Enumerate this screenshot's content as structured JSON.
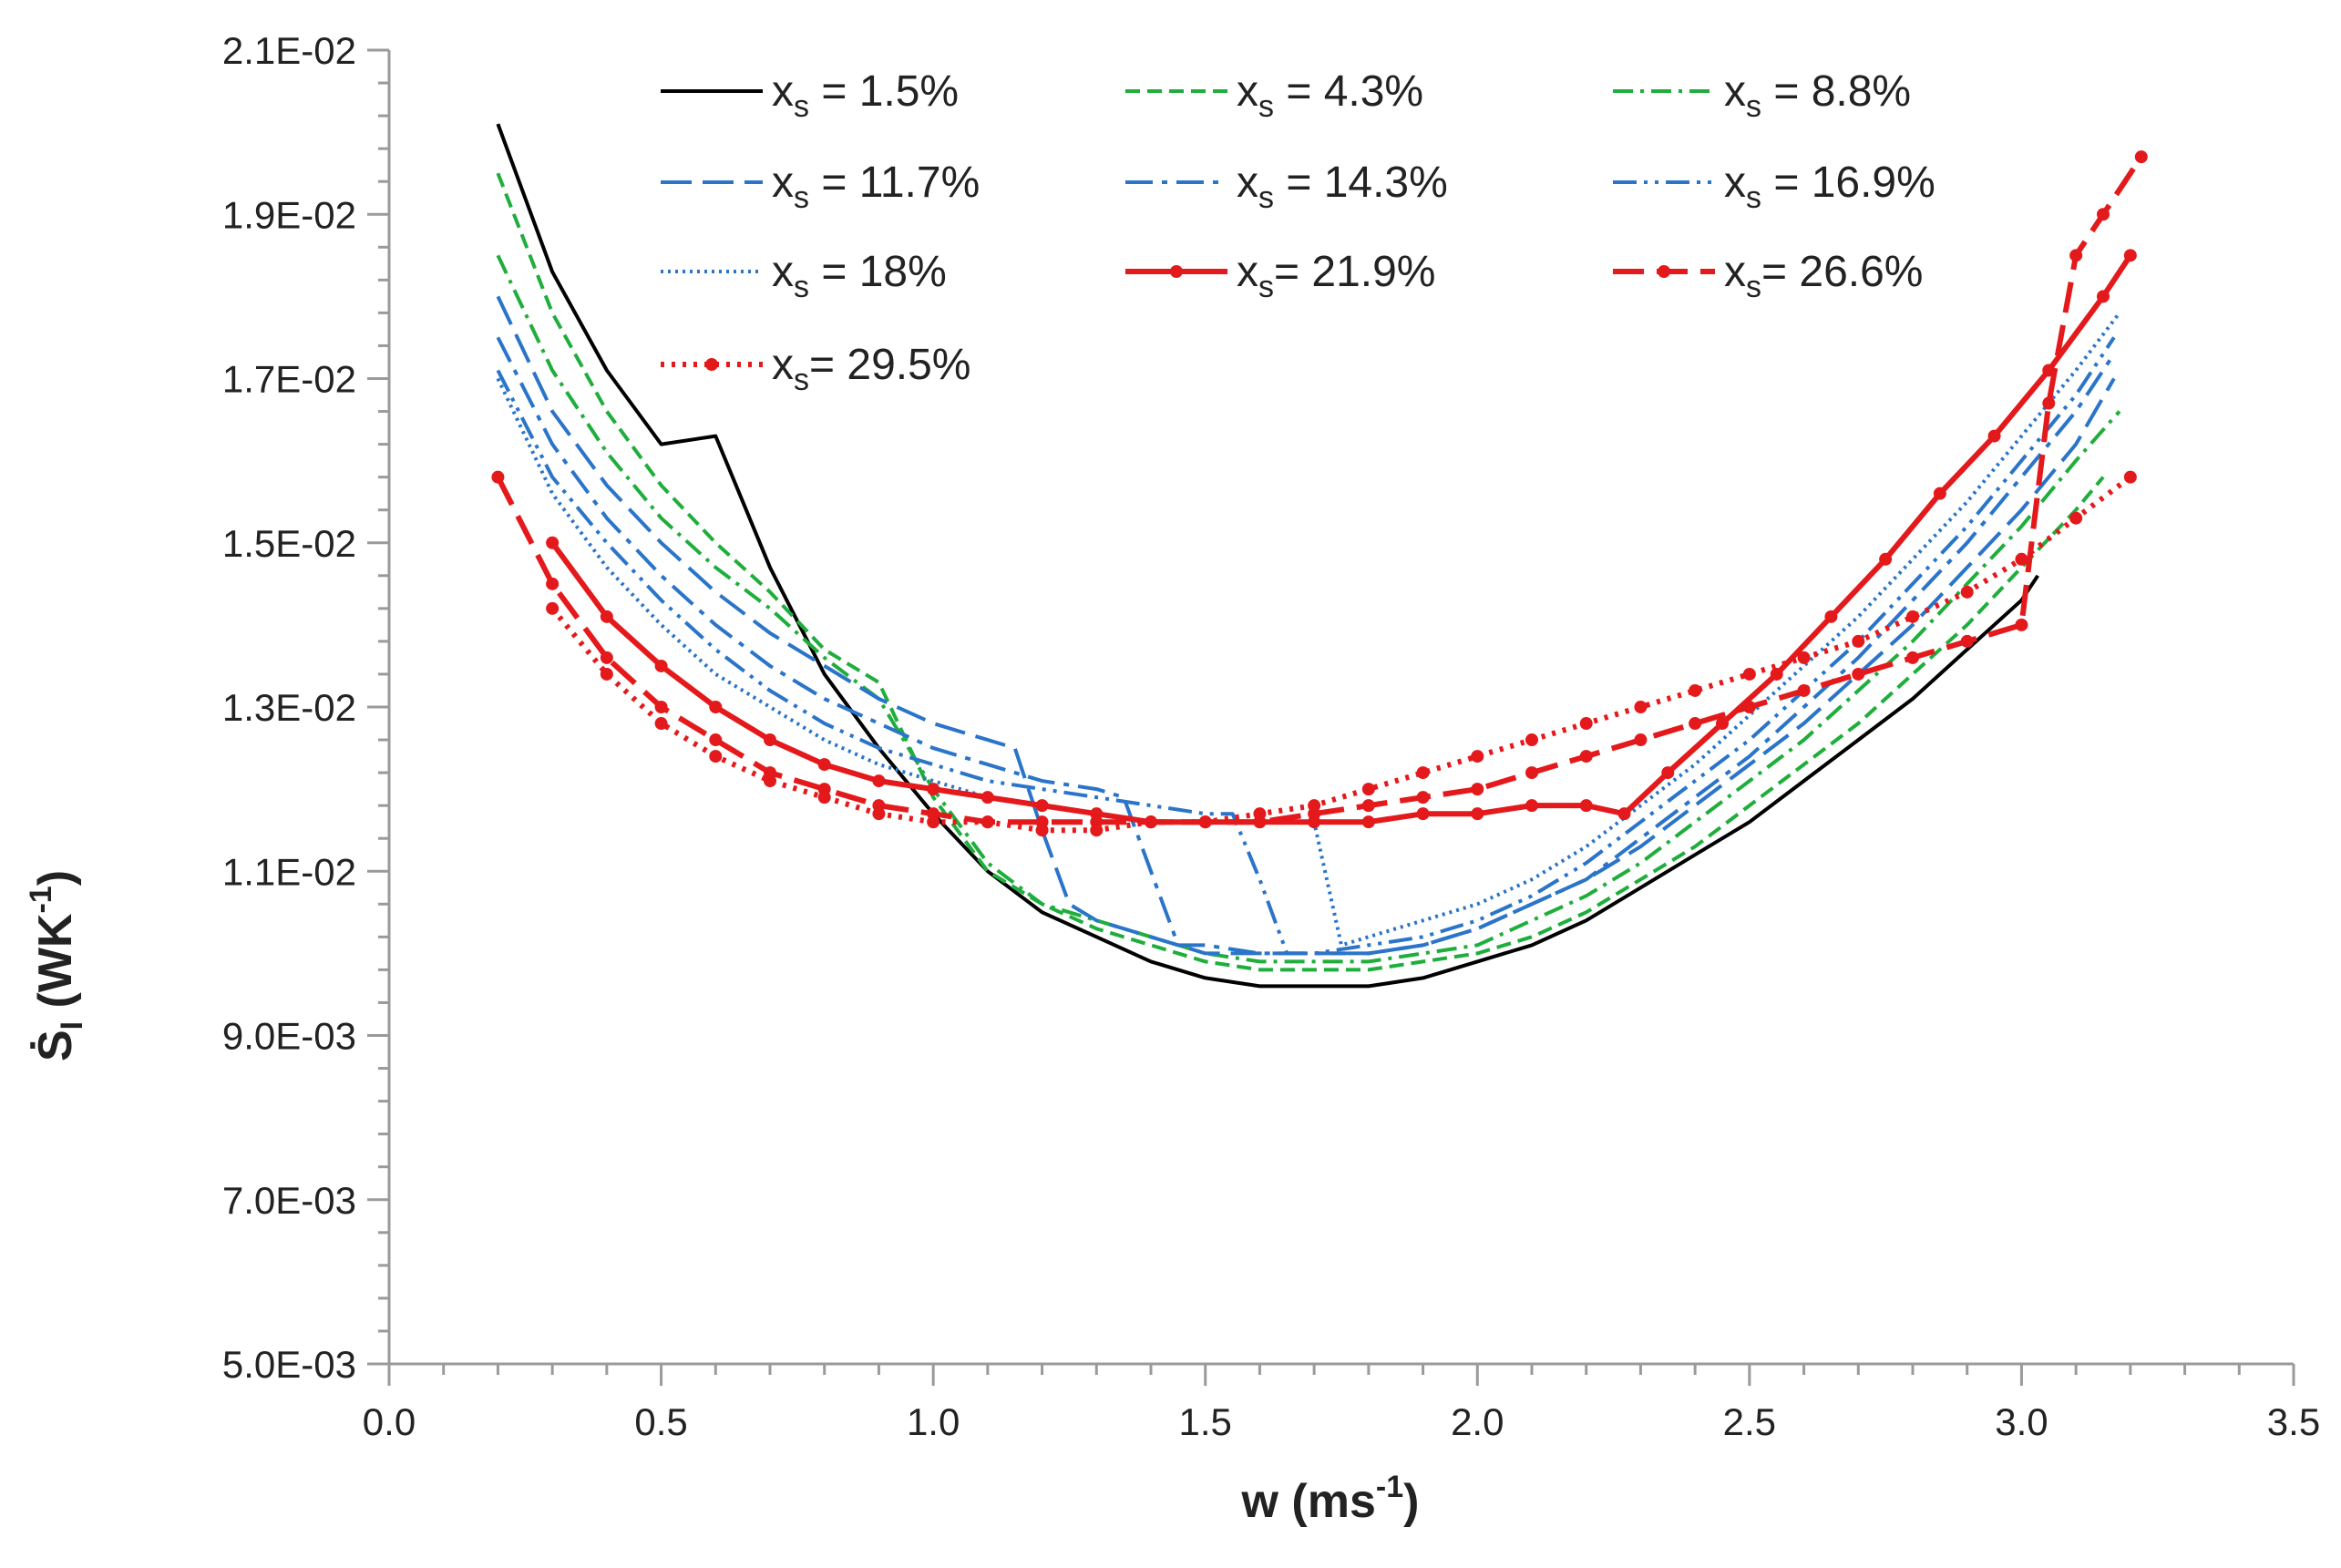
{
  "chart_data": {
    "type": "line",
    "xlabel": {
      "base": "w (ms",
      "sup": "-1",
      "tail": ")"
    },
    "ylabel": {
      "base": "Ṡ",
      "sub": "I",
      "mid": " (WK",
      "sup": "-1",
      "tail": ")"
    },
    "xlim": [
      0,
      3.5
    ],
    "ylim": [
      0.005,
      0.021
    ],
    "x_major_ticks": [
      0,
      0.5,
      1.0,
      1.5,
      2.0,
      2.5,
      3.0,
      3.5
    ],
    "x_tick_labels": [
      "0.0",
      "0.5",
      "1.0",
      "1.5",
      "2.0",
      "2.5",
      "3.0",
      "3.5"
    ],
    "y_major_ticks": [
      0.005,
      0.007,
      0.009,
      0.011,
      0.013,
      0.015,
      0.017,
      0.019,
      0.021
    ],
    "y_tick_labels": [
      "5.0E-03",
      "7.0E-03",
      "9.0E-03",
      "1.1E-02",
      "1.3E-02",
      "1.5E-02",
      "1.7E-02",
      "1.9E-02",
      "2.1E-02"
    ],
    "x_minor_step": 0.1,
    "y_minor_step": 0.0004,
    "grid": false,
    "legend_position": "top",
    "series": [
      {
        "label": {
          "pre": "x",
          "sub": "s",
          "post": " = 1.5%"
        },
        "color": "#000000",
        "dash": "",
        "marker": false,
        "x": [
          0.2,
          0.3,
          0.4,
          0.5,
          0.6,
          0.7,
          0.8,
          0.9,
          1.0,
          1.1,
          1.2,
          1.3,
          1.4,
          1.5,
          1.6,
          1.7,
          1.8,
          1.9,
          2.0,
          2.1,
          2.2,
          2.3,
          2.4,
          2.5,
          2.6,
          2.7,
          2.8,
          2.9,
          3.0,
          3.03
        ],
        "y": [
          0.0201,
          0.0183,
          0.0171,
          0.0162,
          0.0163,
          0.0147,
          0.0134,
          0.0125,
          0.0117,
          0.011,
          0.0105,
          0.0102,
          0.0099,
          0.0097,
          0.0096,
          0.0096,
          0.0096,
          0.0097,
          0.0099,
          0.0101,
          0.0104,
          0.0108,
          0.0112,
          0.0116,
          0.0121,
          0.0126,
          0.0131,
          0.0137,
          0.0143,
          0.0146
        ]
      },
      {
        "label": {
          "pre": "x",
          "sub": "s",
          "post": " = 4.3%"
        },
        "color": "#1fae3c",
        "dash": "16 8",
        "marker": false,
        "x": [
          0.2,
          0.3,
          0.4,
          0.5,
          0.6,
          0.7,
          0.8,
          0.9,
          1.0,
          1.1,
          1.2,
          1.3,
          1.4,
          1.5,
          1.6,
          1.7,
          1.8,
          1.9,
          2.0,
          2.1,
          2.2,
          2.3,
          2.4,
          2.5,
          2.6,
          2.7,
          2.8,
          2.9,
          3.0,
          3.1,
          3.15
        ],
        "y": [
          0.0195,
          0.0178,
          0.0166,
          0.0157,
          0.015,
          0.0144,
          0.0137,
          0.0133,
          0.0119,
          0.011,
          0.0106,
          0.0103,
          0.0101,
          0.0099,
          0.0098,
          0.0098,
          0.0098,
          0.0099,
          0.01,
          0.0102,
          0.0105,
          0.0109,
          0.0113,
          0.0118,
          0.0123,
          0.0128,
          0.0134,
          0.014,
          0.0147,
          0.0154,
          0.0158
        ]
      },
      {
        "label": {
          "pre": " x",
          "sub": "s",
          "post": " = 8.8%"
        },
        "color": "#1fae3c",
        "dash": "22 8 4 8",
        "marker": false,
        "x": [
          0.2,
          0.3,
          0.4,
          0.5,
          0.6,
          0.7,
          0.8,
          0.9,
          1.0,
          1.1,
          1.2,
          1.3,
          1.4,
          1.5,
          1.6,
          1.7,
          1.8,
          1.9,
          2.0,
          2.1,
          2.2,
          2.3,
          2.4,
          2.5,
          2.6,
          2.7,
          2.8,
          2.9,
          3.0,
          3.1,
          3.18
        ],
        "y": [
          0.0185,
          0.0171,
          0.0161,
          0.0153,
          0.0147,
          0.0142,
          0.0136,
          0.0131,
          0.012,
          0.0111,
          0.0106,
          0.0104,
          0.0102,
          0.01,
          0.0099,
          0.0099,
          0.0099,
          0.01,
          0.0101,
          0.0104,
          0.0107,
          0.0111,
          0.0116,
          0.0121,
          0.0126,
          0.0132,
          0.0138,
          0.0145,
          0.0152,
          0.016,
          0.0166
        ]
      },
      {
        "label": {
          "pre": "x",
          "sub": "s",
          "post": " = 11.7%"
        },
        "color": "#2a74c9",
        "dash": "34 12",
        "marker": false,
        "x": [
          0.2,
          0.3,
          0.4,
          0.5,
          0.6,
          0.7,
          0.8,
          0.9,
          1.0,
          1.1,
          1.15,
          1.2,
          1.25,
          1.3,
          1.4,
          1.5,
          1.6,
          1.7,
          1.8,
          1.9,
          2.0,
          2.1,
          2.2,
          2.3,
          2.4,
          2.5,
          2.6,
          2.7,
          2.8,
          2.9,
          3.0,
          3.1,
          3.17
        ],
        "y": [
          0.018,
          0.0166,
          0.0157,
          0.015,
          0.0144,
          0.0139,
          0.0135,
          0.0131,
          0.0128,
          0.0126,
          0.0125,
          0.0115,
          0.0106,
          0.0104,
          0.0102,
          0.01,
          0.01,
          0.01,
          0.01,
          0.0101,
          0.0103,
          0.0106,
          0.0109,
          0.0113,
          0.0118,
          0.0123,
          0.0128,
          0.0134,
          0.014,
          0.0147,
          0.0154,
          0.0162,
          0.017
        ]
      },
      {
        "label": {
          "pre": "x",
          "sub": "s",
          "post": " = 14.3%"
        },
        "color": "#2a74c9",
        "dash": "30 10 6 10",
        "marker": false,
        "x": [
          0.2,
          0.3,
          0.4,
          0.5,
          0.6,
          0.7,
          0.8,
          0.9,
          1.0,
          1.1,
          1.2,
          1.3,
          1.35,
          1.4,
          1.45,
          1.5,
          1.6,
          1.7,
          1.8,
          1.9,
          2.0,
          2.1,
          2.2,
          2.3,
          2.4,
          2.5,
          2.6,
          2.7,
          2.8,
          2.9,
          3.0,
          3.1,
          3.17
        ],
        "y": [
          0.0175,
          0.0162,
          0.0153,
          0.0146,
          0.014,
          0.0135,
          0.0131,
          0.0128,
          0.0125,
          0.0123,
          0.0121,
          0.012,
          0.0119,
          0.011,
          0.0101,
          0.0101,
          0.01,
          0.01,
          0.01,
          0.0101,
          0.0103,
          0.0106,
          0.0109,
          0.0114,
          0.0119,
          0.0124,
          0.013,
          0.0136,
          0.0143,
          0.015,
          0.0158,
          0.0166,
          0.0173
        ]
      },
      {
        "label": {
          "pre": "x",
          "sub": "s",
          "post": " = 16.9%"
        },
        "color": "#2a74c9",
        "dash": "26 8 4 8 4 8",
        "marker": false,
        "x": [
          0.2,
          0.3,
          0.4,
          0.5,
          0.6,
          0.7,
          0.8,
          0.9,
          1.0,
          1.1,
          1.2,
          1.3,
          1.4,
          1.5,
          1.55,
          1.6,
          1.65,
          1.7,
          1.8,
          1.9,
          2.0,
          2.1,
          2.2,
          2.3,
          2.4,
          2.5,
          2.6,
          2.7,
          2.8,
          2.9,
          3.0,
          3.1,
          3.17
        ],
        "y": [
          0.0171,
          0.0158,
          0.015,
          0.0143,
          0.0137,
          0.0132,
          0.0128,
          0.0125,
          0.0123,
          0.0121,
          0.012,
          0.0119,
          0.0118,
          0.0117,
          0.0117,
          0.0109,
          0.01,
          0.01,
          0.0101,
          0.0102,
          0.0104,
          0.0107,
          0.0111,
          0.0116,
          0.0121,
          0.0126,
          0.0132,
          0.0138,
          0.0145,
          0.0152,
          0.016,
          0.0168,
          0.0175
        ]
      },
      {
        "label": {
          "pre": "x",
          "sub": "s",
          "post": " = 18%"
        },
        "color": "#2a74c9",
        "dash": "3 5",
        "marker": false,
        "x": [
          0.2,
          0.3,
          0.4,
          0.5,
          0.6,
          0.7,
          0.8,
          0.9,
          1.0,
          1.1,
          1.2,
          1.3,
          1.4,
          1.5,
          1.6,
          1.7,
          1.75,
          1.8,
          1.9,
          2.0,
          2.1,
          2.2,
          2.3,
          2.4,
          2.5,
          2.6,
          2.7,
          2.8,
          2.9,
          3.0,
          3.1,
          3.18
        ],
        "y": [
          0.017,
          0.0156,
          0.0147,
          0.014,
          0.0134,
          0.013,
          0.0126,
          0.0123,
          0.0121,
          0.0119,
          0.0118,
          0.0117,
          0.0116,
          0.0116,
          0.0116,
          0.0116,
          0.0101,
          0.0102,
          0.0104,
          0.0106,
          0.0109,
          0.0113,
          0.0118,
          0.0123,
          0.0129,
          0.0135,
          0.0141,
          0.0148,
          0.0155,
          0.0163,
          0.0171,
          0.0178
        ]
      },
      {
        "label": {
          "pre": "x",
          "sub": "s",
          "post": "= 21.9%"
        },
        "color": "#e4191b",
        "dash": "",
        "marker": true,
        "x": [
          0.3,
          0.4,
          0.5,
          0.6,
          0.7,
          0.8,
          0.9,
          1.0,
          1.1,
          1.2,
          1.3,
          1.4,
          1.5,
          1.6,
          1.7,
          1.8,
          1.9,
          2.0,
          2.1,
          2.2,
          2.27,
          2.35,
          2.45,
          2.55,
          2.65,
          2.75,
          2.85,
          2.95,
          3.05,
          3.15,
          3.2
        ],
        "y": [
          0.015,
          0.0141,
          0.0135,
          0.013,
          0.0126,
          0.0123,
          0.0121,
          0.012,
          0.0119,
          0.0118,
          0.0117,
          0.0116,
          0.0116,
          0.0116,
          0.0116,
          0.0116,
          0.0117,
          0.0117,
          0.0118,
          0.0118,
          0.0117,
          0.0122,
          0.0128,
          0.0134,
          0.0141,
          0.0148,
          0.0156,
          0.0163,
          0.0171,
          0.018,
          0.0185
        ]
      },
      {
        "label": {
          "pre": "x",
          "sub": "s",
          "post": "= 26.6%"
        },
        "color": "#e4191b",
        "dash": "34 14",
        "marker": true,
        "x": [
          0.2,
          0.3,
          0.4,
          0.5,
          0.6,
          0.7,
          0.8,
          0.9,
          1.0,
          1.1,
          1.2,
          1.3,
          1.4,
          1.5,
          1.6,
          1.7,
          1.8,
          1.9,
          2.0,
          2.1,
          2.2,
          2.3,
          2.4,
          2.5,
          2.6,
          2.7,
          2.8,
          2.9,
          3.0,
          3.05,
          3.1,
          3.15,
          3.22
        ],
        "y": [
          0.0158,
          0.0145,
          0.0136,
          0.013,
          0.0126,
          0.0122,
          0.012,
          0.0118,
          0.0117,
          0.0116,
          0.0116,
          0.0116,
          0.0116,
          0.0116,
          0.0116,
          0.0117,
          0.0118,
          0.0119,
          0.012,
          0.0122,
          0.0124,
          0.0126,
          0.0128,
          0.013,
          0.0132,
          0.0134,
          0.0136,
          0.0138,
          0.014,
          0.0167,
          0.0185,
          0.019,
          0.0197
        ]
      },
      {
        "label": {
          "pre": "x",
          "sub": "s",
          "post": "= 29.5%"
        },
        "color": "#e4191b",
        "dash": "4 8",
        "marker": true,
        "x": [
          0.3,
          0.4,
          0.5,
          0.6,
          0.7,
          0.8,
          0.9,
          1.0,
          1.1,
          1.2,
          1.3,
          1.4,
          1.5,
          1.6,
          1.7,
          1.8,
          1.9,
          2.0,
          2.1,
          2.2,
          2.3,
          2.4,
          2.5,
          2.6,
          2.7,
          2.8,
          2.9,
          3.0,
          3.1,
          3.2
        ],
        "y": [
          0.0142,
          0.0134,
          0.0128,
          0.0124,
          0.0121,
          0.0119,
          0.0117,
          0.0116,
          0.0116,
          0.0115,
          0.0115,
          0.0116,
          0.0116,
          0.0117,
          0.0118,
          0.012,
          0.0122,
          0.0124,
          0.0126,
          0.0128,
          0.013,
          0.0132,
          0.0134,
          0.0136,
          0.0138,
          0.0141,
          0.0144,
          0.0148,
          0.0153,
          0.0158
        ]
      }
    ]
  }
}
